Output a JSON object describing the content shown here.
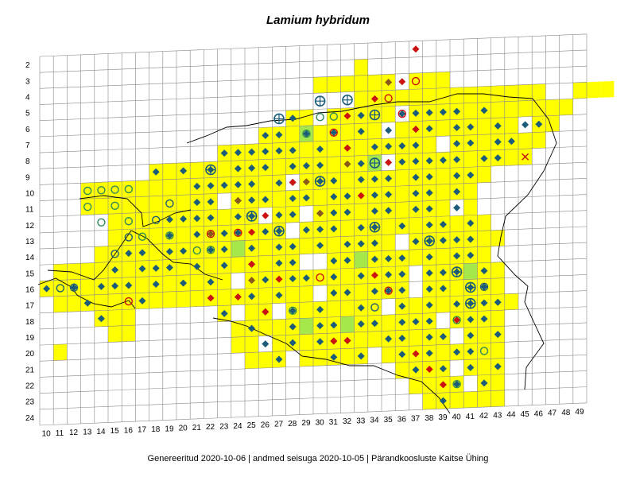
{
  "title": "Lamium hybridum",
  "footer": "Genereeritud 2020-10-06  |  andmed seisuga 2020-10-05  |  Pärandkoosluste Kaitse Ühing",
  "grid": {
    "row_labels": [
      "2",
      "3",
      "4",
      "5",
      "6",
      "7",
      "8",
      "9",
      "10",
      "11",
      "12",
      "13",
      "14",
      "15",
      "16",
      "17",
      "18",
      "19",
      "20",
      "21",
      "22",
      "23",
      "24"
    ],
    "col_labels": [
      "10",
      "11",
      "12",
      "13",
      "14",
      "15",
      "16",
      "17",
      "18",
      "19",
      "20",
      "21",
      "22",
      "23",
      "24",
      "25",
      "26",
      "27",
      "28",
      "29",
      "30",
      "31",
      "32",
      "33",
      "34",
      "35",
      "36",
      "37",
      "38",
      "39",
      "40",
      "41",
      "42",
      "43",
      "44",
      "45",
      "46",
      "47",
      "48",
      "49"
    ]
  },
  "colors": {
    "occupied_cell": "#ffff00",
    "highlight_cell": "#a6e84a",
    "grid_line": "#888888",
    "recent_record": "#1a5c7a",
    "older_record": "#cc1111",
    "historic_record": "#8a5a1a",
    "open_marker": "#2e8b57",
    "coast_line": "#000000"
  },
  "legend_symbols": [
    "filled-diamond",
    "red-diamond",
    "brown-diamond",
    "open-circle",
    "crossed-circle",
    "cross-mark"
  ]
}
